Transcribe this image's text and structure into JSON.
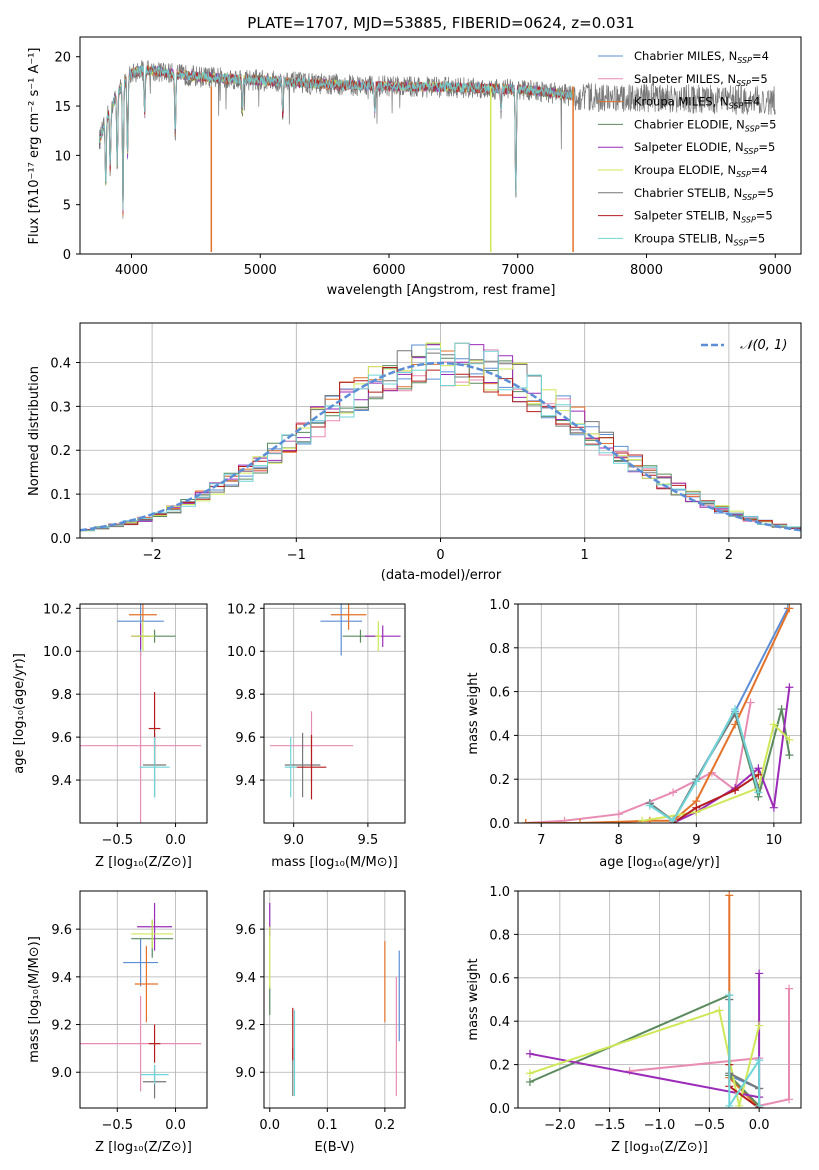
{
  "colors": {
    "chabrier_miles": "#5b8ed6",
    "salpeter_miles": "#e88cb4",
    "kroupa_miles": "#e3722a",
    "chabrier_elodie": "#5a8a5e",
    "salpeter_elodie": "#9b2bb8",
    "kroupa_elodie": "#cfe85a",
    "chabrier_stelib": "#777777",
    "salpeter_stelib": "#b51d1d",
    "kroupa_stelib": "#6fd5d9",
    "normal": "#5b8ed6",
    "grid": "#b0b0b0"
  },
  "models": [
    {
      "label": "Chabrier MILES, N",
      "nssp": "=4",
      "color_key": "chabrier_miles"
    },
    {
      "label": "Salpeter MILES, N",
      "nssp": "=5",
      "color_key": "salpeter_miles"
    },
    {
      "label": "Kroupa MILES, N",
      "nssp": "=4",
      "color_key": "kroupa_miles"
    },
    {
      "label": "Chabrier ELODIE, N",
      "nssp": "=5",
      "color_key": "chabrier_elodie"
    },
    {
      "label": "Salpeter ELODIE, N",
      "nssp": "=5",
      "color_key": "salpeter_elodie"
    },
    {
      "label": "Kroupa ELODIE, N",
      "nssp": "=4",
      "color_key": "kroupa_elodie"
    },
    {
      "label": "Chabrier STELIB, N",
      "nssp": "=5",
      "color_key": "chabrier_stelib"
    },
    {
      "label": "Salpeter STELIB, N",
      "nssp": "=5",
      "color_key": "salpeter_stelib"
    },
    {
      "label": "Kroupa STELIB, N",
      "nssp": "=5",
      "color_key": "kroupa_stelib"
    }
  ],
  "nssp_sub": "SSP",
  "chart_data": [
    {
      "id": "spectrum",
      "type": "line",
      "title": "PLATE=1707, MJD=53885, FIBERID=0624, z=0.031",
      "xlabel": "wavelength [Angstrom, rest frame]",
      "ylabel": "Flux [fλ10⁻¹⁷ erg cm⁻² s⁻¹ A⁻¹]",
      "xlim": [
        3600,
        9200
      ],
      "ylim": [
        0,
        22
      ],
      "xticks": [
        4000,
        5000,
        6000,
        7000,
        8000,
        9000
      ],
      "yticks": [
        0,
        5,
        10,
        15,
        20
      ],
      "continuum": {
        "x": [
          3750,
          3800,
          3900,
          4000,
          4100,
          4300,
          4500,
          5000,
          5500,
          6000,
          6500,
          7000,
          7300,
          7440
        ],
        "y": [
          11.5,
          13.5,
          16.5,
          18.3,
          18.7,
          18.3,
          18.0,
          17.6,
          17.2,
          17.0,
          16.9,
          16.7,
          16.3,
          16.0
        ]
      },
      "absorption_features": [
        {
          "x": 3800,
          "depth": 0.5
        },
        {
          "x": 3835,
          "depth": 0.4
        },
        {
          "x": 3889,
          "depth": 0.45
        },
        {
          "x": 3934,
          "depth": 0.75
        },
        {
          "x": 3969,
          "depth": 0.45
        },
        {
          "x": 4102,
          "depth": 0.25
        },
        {
          "x": 4340,
          "depth": 0.35
        },
        {
          "x": 4861,
          "depth": 0.2
        },
        {
          "x": 5175,
          "depth": 0.2
        },
        {
          "x": 5890,
          "depth": 0.15
        },
        {
          "x": 6870,
          "depth": 0.12
        },
        {
          "x": 6985,
          "depth": 0.65
        }
      ],
      "sky_dropouts": [
        {
          "x": 4620,
          "y": 0.2,
          "color_key": "kroupa_miles"
        },
        {
          "x": 6790,
          "y": 0.2,
          "color_key": "kroupa_elodie"
        },
        {
          "x": 7430,
          "y": 0.2,
          "color_key": "kroupa_miles"
        }
      ],
      "legend_position": "upper right"
    },
    {
      "id": "residuals",
      "type": "histogram",
      "xlabel": "(data-model)/error",
      "ylabel": "Normed distribution",
      "xlim": [
        -2.5,
        2.5
      ],
      "ylim": [
        0,
        0.49
      ],
      "xticks": [
        -2,
        -1,
        0,
        1,
        2
      ],
      "ytick_labels": [
        "0.0",
        "0.1",
        "0.2",
        "0.3",
        "0.4"
      ],
      "ytick_values": [
        0,
        0.1,
        0.2,
        0.3,
        0.4
      ],
      "bin_width": 0.1,
      "reference_curve": {
        "name": "𝒩(0, 1)",
        "mu": 0,
        "sigma": 1,
        "style": "dashed"
      },
      "legend_position": "upper right"
    },
    {
      "id": "age-vs-Z",
      "type": "errorbar",
      "xlabel": "Z [log₁₀(Z/Z⊙)]",
      "ylabel": "age  [log₁₀(age/yr)]",
      "xlim": [
        -0.82,
        0.27
      ],
      "ylim": [
        9.2,
        10.22
      ],
      "xticks": [
        -0.5,
        0.0
      ],
      "xtick_labels": [
        "−0.5",
        "0.0"
      ],
      "yticks": [
        9.4,
        9.6,
        9.8,
        10.0,
        10.2
      ],
      "points": [
        {
          "c": "chabrier_miles",
          "x": -0.3,
          "xe": 0.2,
          "y": 10.14,
          "ye": 0.16
        },
        {
          "c": "salpeter_miles",
          "x": -0.3,
          "xe": 0.52,
          "y": 9.56,
          "ye": 0.44
        },
        {
          "c": "kroupa_miles",
          "x": -0.28,
          "xe": 0.12,
          "y": 10.17,
          "ye": 0.08
        },
        {
          "c": "chabrier_elodie",
          "x": -0.18,
          "xe": 0.18,
          "y": 10.07,
          "ye": 0.03
        },
        {
          "c": "salpeter_elodie",
          "x": -0.3,
          "xe": 0.08,
          "y": 10.07,
          "ye": 0.06
        },
        {
          "c": "kroupa_elodie",
          "x": -0.28,
          "xe": 0.1,
          "y": 10.07,
          "ye": 0.07
        },
        {
          "c": "chabrier_stelib",
          "x": -0.18,
          "xe": 0.1,
          "y": 9.47,
          "ye": 0.15
        },
        {
          "c": "salpeter_stelib",
          "x": -0.18,
          "xe": 0.05,
          "y": 9.64,
          "ye": 0.17
        },
        {
          "c": "kroupa_stelib",
          "x": -0.18,
          "xe": 0.13,
          "y": 9.46,
          "ye": 0.14
        }
      ]
    },
    {
      "id": "age-vs-mass",
      "type": "errorbar",
      "xlabel": "mass [log₁₀(M/M⊙)]",
      "ylabel": "",
      "xlim": [
        8.8,
        9.75
      ],
      "ylim": [
        9.2,
        10.22
      ],
      "xticks": [
        9.0,
        9.5
      ],
      "xtick_labels": [
        "9.0",
        "9.5"
      ],
      "yticks": [
        9.4,
        9.6,
        9.8,
        10.0,
        10.2
      ],
      "points": [
        {
          "c": "chabrier_miles",
          "x": 9.32,
          "xe": 0.14,
          "y": 10.14,
          "ye": 0.16
        },
        {
          "c": "salpeter_miles",
          "x": 9.12,
          "xe": 0.28,
          "y": 9.56,
          "ye": 0.16
        },
        {
          "c": "kroupa_miles",
          "x": 9.37,
          "xe": 0.12,
          "y": 10.17,
          "ye": 0.07
        },
        {
          "c": "chabrier_elodie",
          "x": 9.45,
          "xe": 0.12,
          "y": 10.07,
          "ye": 0.03
        },
        {
          "c": "salpeter_elodie",
          "x": 9.6,
          "xe": 0.12,
          "y": 10.07,
          "ye": 0.05
        },
        {
          "c": "kroupa_elodie",
          "x": 9.57,
          "xe": 0.02,
          "y": 10.07,
          "ye": 0.07
        },
        {
          "c": "chabrier_stelib",
          "x": 9.06,
          "xe": 0.12,
          "y": 9.47,
          "ye": 0.15
        },
        {
          "c": "salpeter_stelib",
          "x": 9.12,
          "xe": 0.1,
          "y": 9.46,
          "ye": 0.15
        },
        {
          "c": "kroupa_stelib",
          "x": 8.98,
          "xe": 0.04,
          "y": 9.46,
          "ye": 0.14
        }
      ]
    },
    {
      "id": "weight-vs-age",
      "type": "line",
      "xlabel": "age  [log₁₀(age/yr)]",
      "ylabel": "mass weight",
      "xlim": [
        6.7,
        10.35
      ],
      "ylim": [
        0,
        1.0
      ],
      "xticks": [
        7,
        8,
        9,
        10
      ],
      "yticks": [
        0,
        0.2,
        0.4,
        0.6,
        0.8,
        1.0
      ],
      "ytick_labels": [
        "0.0",
        "0.2",
        "0.4",
        "0.6",
        "0.8",
        "1.0"
      ],
      "series": [
        {
          "c": "chabrier_miles",
          "x": [
            8.4,
            8.7,
            9.0,
            9.5,
            10.18
          ],
          "y": [
            0.09,
            0.01,
            0.2,
            0.51,
            0.98
          ]
        },
        {
          "c": "salpeter_miles",
          "x": [
            6.8,
            7.3,
            8.0,
            8.7,
            9.2,
            9.5,
            9.7
          ],
          "y": [
            0.0,
            0.01,
            0.04,
            0.14,
            0.23,
            0.15,
            0.55
          ]
        },
        {
          "c": "kroupa_miles",
          "x": [
            6.8,
            7.5,
            8.4,
            8.7,
            9.0,
            9.5,
            10.2
          ],
          "y": [
            0.0,
            0.0,
            0.01,
            0.01,
            0.1,
            0.45,
            0.98
          ]
        },
        {
          "c": "chabrier_elodie",
          "x": [
            8.4,
            8.7,
            9.0,
            9.5,
            9.8,
            10.1,
            10.2
          ],
          "y": [
            0.09,
            0.01,
            0.2,
            0.5,
            0.12,
            0.52,
            0.31
          ]
        },
        {
          "c": "salpeter_elodie",
          "x": [
            8.7,
            9.0,
            9.5,
            9.8,
            10.0,
            10.2
          ],
          "y": [
            0.0,
            0.05,
            0.16,
            0.25,
            0.07,
            0.62
          ]
        },
        {
          "c": "kroupa_elodie",
          "x": [
            8.3,
            9.0,
            9.8,
            10.0,
            10.2
          ],
          "y": [
            0.01,
            0.05,
            0.16,
            0.45,
            0.38
          ]
        },
        {
          "c": "chabrier_stelib",
          "x": [
            8.4,
            8.7,
            9.0,
            9.5,
            9.8
          ],
          "y": [
            0.09,
            0.01,
            0.2,
            0.5,
            0.16
          ]
        },
        {
          "c": "salpeter_stelib",
          "x": [
            8.7,
            9.0,
            9.5,
            9.8
          ],
          "y": [
            0.0,
            0.07,
            0.15,
            0.22
          ]
        },
        {
          "c": "kroupa_stelib",
          "x": [
            8.4,
            8.7,
            9.0,
            9.5,
            9.8
          ],
          "y": [
            0.08,
            0.01,
            0.19,
            0.52,
            0.14
          ]
        }
      ]
    },
    {
      "id": "mass-vs-Z",
      "type": "errorbar",
      "xlabel": "Z [log₁₀(Z/Z⊙)]",
      "ylabel": "mass [log₁₀(M/M⊙)]",
      "xlim": [
        -0.82,
        0.27
      ],
      "ylim": [
        8.85,
        9.76
      ],
      "xticks": [
        -0.5,
        0.0
      ],
      "xtick_labels": [
        "−0.5",
        "0.0"
      ],
      "yticks": [
        9.0,
        9.2,
        9.4,
        9.6
      ],
      "points": [
        {
          "c": "chabrier_miles",
          "x": -0.3,
          "xe": 0.15,
          "y": 9.46,
          "ye": 0.1
        },
        {
          "c": "salpeter_miles",
          "x": -0.3,
          "xe": 0.52,
          "y": 9.12,
          "ye": 0.2
        },
        {
          "c": "kroupa_miles",
          "x": -0.25,
          "xe": 0.1,
          "y": 9.37,
          "ye": 0.16
        },
        {
          "c": "chabrier_elodie",
          "x": -0.2,
          "xe": 0.18,
          "y": 9.56,
          "ye": 0.08
        },
        {
          "c": "salpeter_elodie",
          "x": -0.18,
          "xe": 0.15,
          "y": 9.61,
          "ye": 0.1
        },
        {
          "c": "kroupa_elodie",
          "x": -0.2,
          "xe": 0.18,
          "y": 9.58,
          "ye": 0.06
        },
        {
          "c": "chabrier_stelib",
          "x": -0.18,
          "xe": 0.1,
          "y": 8.96,
          "ye": 0.07
        },
        {
          "c": "salpeter_stelib",
          "x": -0.18,
          "xe": 0.05,
          "y": 9.12,
          "ye": 0.08
        },
        {
          "c": "kroupa_stelib",
          "x": -0.18,
          "xe": 0.12,
          "y": 8.99,
          "ye": 0.04
        }
      ]
    },
    {
      "id": "mass-vs-ebv",
      "type": "errorbar",
      "xlabel": "E(B-V)",
      "ylabel": "",
      "xlim": [
        -0.01,
        0.235
      ],
      "ylim": [
        8.85,
        9.76
      ],
      "xticks": [
        0.0,
        0.1,
        0.2
      ],
      "xtick_labels": [
        "0.0",
        "0.1",
        "0.2"
      ],
      "yticks": [
        9.0,
        9.2,
        9.4,
        9.6
      ],
      "points": [
        {
          "c": "chabrier_miles",
          "x": 0.225,
          "xe": 0,
          "y": 9.32,
          "ye": 0.19
        },
        {
          "c": "salpeter_miles",
          "x": 0.22,
          "xe": 0,
          "y": 9.15,
          "ye": 0.25
        },
        {
          "c": "kroupa_miles",
          "x": 0.2,
          "xe": 0,
          "y": 9.38,
          "ye": 0.17
        },
        {
          "c": "chabrier_elodie",
          "x": 0.0,
          "xe": 0,
          "y": 9.3,
          "ye": 0.06
        },
        {
          "c": "salpeter_elodie",
          "x": 0.0,
          "xe": 0,
          "y": 9.64,
          "ye": 0.07
        },
        {
          "c": "kroupa_elodie",
          "x": 0.0,
          "xe": 0,
          "y": 9.48,
          "ye": 0.13
        },
        {
          "c": "chabrier_stelib",
          "x": 0.04,
          "xe": 0,
          "y": 9.0,
          "ye": 0.1
        },
        {
          "c": "salpeter_stelib",
          "x": 0.04,
          "xe": 0,
          "y": 9.16,
          "ye": 0.11
        },
        {
          "c": "kroupa_stelib",
          "x": 0.043,
          "xe": 0,
          "y": 9.08,
          "ye": 0.18
        }
      ]
    },
    {
      "id": "weight-vs-Z",
      "type": "line",
      "xlabel": "Z [log₁₀(Z/Z⊙)]",
      "ylabel": "mass weight",
      "xlim": [
        -2.42,
        0.42
      ],
      "ylim": [
        0,
        1.0
      ],
      "xticks": [
        -2.0,
        -1.5,
        -1.0,
        -0.5,
        0.0
      ],
      "xtick_labels": [
        "−2.0",
        "−1.5",
        "−1.0",
        "−0.5",
        "0.0"
      ],
      "yticks": [
        0,
        0.2,
        0.4,
        0.6,
        0.8,
        1.0
      ],
      "ytick_labels": [
        "0.0",
        "0.2",
        "0.4",
        "0.6",
        "0.8",
        "1.0"
      ],
      "series": [
        {
          "c": "chabrier_miles",
          "x": [
            -0.3,
            -0.3,
            0.0,
            0.0
          ],
          "y": [
            0.5,
            0.15,
            0.09,
            0.0
          ]
        },
        {
          "c": "salpeter_miles",
          "x": [
            -1.3,
            0.0,
            0.0,
            0.3,
            0.3
          ],
          "y": [
            0.17,
            0.23,
            0.01,
            0.04,
            0.55
          ]
        },
        {
          "c": "kroupa_miles",
          "x": [
            -0.3,
            -0.3,
            0.0
          ],
          "y": [
            0.98,
            0.14,
            0.0
          ]
        },
        {
          "c": "chabrier_elodie",
          "x": [
            -2.3,
            -0.3,
            -0.3,
            0.0
          ],
          "y": [
            0.12,
            0.52,
            0.15,
            0.01
          ]
        },
        {
          "c": "salpeter_elodie",
          "x": [
            -2.3,
            0.0,
            0.0,
            0.0
          ],
          "y": [
            0.25,
            0.05,
            0.62,
            0.0
          ]
        },
        {
          "c": "kroupa_elodie",
          "x": [
            -2.3,
            -0.4,
            -0.2,
            0.0
          ],
          "y": [
            0.16,
            0.45,
            0.01,
            0.38
          ]
        },
        {
          "c": "chabrier_stelib",
          "x": [
            -0.3,
            -0.3,
            0.0,
            0.0
          ],
          "y": [
            0.5,
            0.16,
            0.09,
            0.0
          ]
        },
        {
          "c": "salpeter_stelib",
          "x": [
            -0.3,
            -0.3,
            0.0
          ],
          "y": [
            0.2,
            0.1,
            0.0
          ]
        },
        {
          "c": "kroupa_stelib",
          "x": [
            -0.3,
            -0.3,
            0.0,
            0.0
          ],
          "y": [
            0.52,
            0.01,
            0.22,
            0.01
          ]
        }
      ]
    }
  ]
}
